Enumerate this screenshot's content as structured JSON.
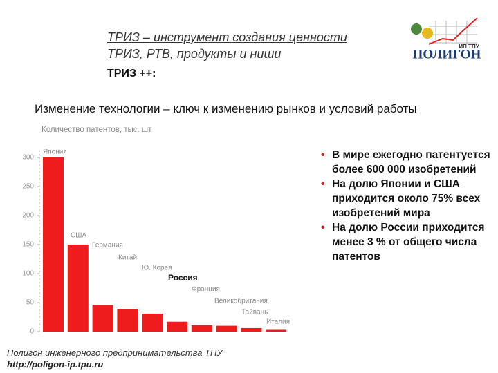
{
  "header": {
    "line1": "ТРИЗ – инструмент создания ценности",
    "line2": "ТРИЗ, РТВ, продукты и ниши",
    "tag": "ТРИЗ ++:"
  },
  "logo": {
    "name": "ПОЛИГОН",
    "sub": "ИП ТПУ"
  },
  "subtitle": "Изменение технологии – ключ к изменению рынков и условий работы",
  "chart_data": {
    "type": "bar",
    "y_label": "Количество патентов, тыс. шт",
    "categories": [
      "Япония",
      "США",
      "Германия",
      "Китай",
      "Ю. Корея",
      "Россия",
      "Франция",
      "Великобритания",
      "Тайвань",
      "Италия"
    ],
    "values": [
      300,
      150,
      46,
      39,
      31,
      17,
      11,
      10,
      6,
      3
    ],
    "color": "#ee1c1c",
    "ylim": [
      0,
      300
    ],
    "yticks": [
      0,
      50,
      100,
      150,
      200,
      250,
      300
    ],
    "grid": false
  },
  "bullets": [
    "В мире ежегодно патентуется более 600 000 изобретений",
    "На долю Японии и США приходится около 75% всех изобретений мира",
    "На долю России приходится менее 3 % от общего числа патентов"
  ],
  "footer": {
    "org": "Полигон инженерного предпринимательства ТПУ",
    "url": "http://poligon-ip.tpu.ru"
  }
}
